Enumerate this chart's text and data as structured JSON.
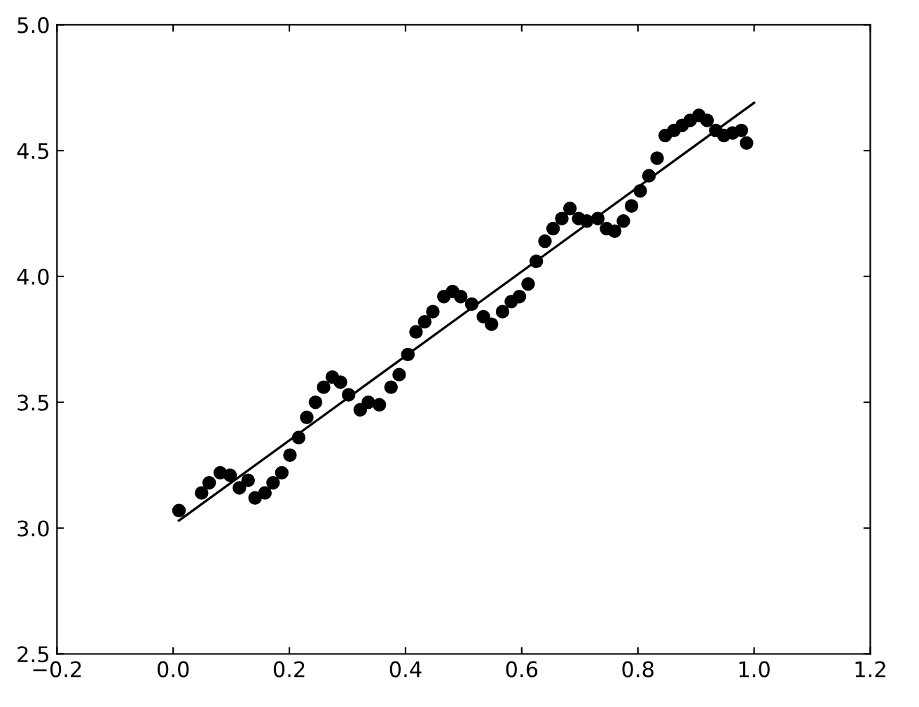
{
  "chart_data": {
    "type": "scatter",
    "xlim": [
      -0.2,
      1.2
    ],
    "ylim": [
      2.5,
      5.0
    ],
    "xticks": [
      {
        "value": -0.2,
        "label": "−0.2"
      },
      {
        "value": 0.0,
        "label": "0.0"
      },
      {
        "value": 0.2,
        "label": "0.2"
      },
      {
        "value": 0.4,
        "label": "0.4"
      },
      {
        "value": 0.6,
        "label": "0.6"
      },
      {
        "value": 0.8,
        "label": "0.8"
      },
      {
        "value": 1.0,
        "label": "1.0"
      },
      {
        "value": 1.2,
        "label": "1.2"
      }
    ],
    "yticks": [
      {
        "value": 2.5,
        "label": "2.5"
      },
      {
        "value": 3.0,
        "label": "3.0"
      },
      {
        "value": 3.5,
        "label": "3.5"
      },
      {
        "value": 4.0,
        "label": "4.0"
      },
      {
        "value": 4.5,
        "label": "4.5"
      },
      {
        "value": 5.0,
        "label": "5.0"
      }
    ],
    "grid": false,
    "legend": false,
    "series": [
      {
        "color": "#000000",
        "marker": "circle",
        "x": [
          0.01,
          0.049,
          0.062,
          0.081,
          0.098,
          0.114,
          0.129,
          0.141,
          0.158,
          0.172,
          0.187,
          0.201,
          0.216,
          0.23,
          0.245,
          0.259,
          0.274,
          0.288,
          0.302,
          0.322,
          0.336,
          0.355,
          0.375,
          0.389,
          0.404,
          0.418,
          0.433,
          0.447,
          0.466,
          0.481,
          0.495,
          0.514,
          0.534,
          0.548,
          0.567,
          0.582,
          0.596,
          0.611,
          0.625,
          0.64,
          0.654,
          0.669,
          0.683,
          0.698,
          0.712,
          0.731,
          0.746,
          0.76,
          0.775,
          0.789,
          0.804,
          0.819,
          0.833,
          0.847,
          0.862,
          0.876,
          0.89,
          0.905,
          0.919,
          0.934,
          0.948,
          0.963,
          0.978,
          0.987
        ],
        "values": [
          3.07,
          3.14,
          3.18,
          3.22,
          3.21,
          3.16,
          3.19,
          3.12,
          3.14,
          3.18,
          3.22,
          3.29,
          3.36,
          3.44,
          3.5,
          3.56,
          3.6,
          3.58,
          3.53,
          3.47,
          3.5,
          3.49,
          3.56,
          3.61,
          3.69,
          3.78,
          3.82,
          3.86,
          3.92,
          3.94,
          3.92,
          3.89,
          3.84,
          3.81,
          3.86,
          3.9,
          3.92,
          3.97,
          4.06,
          4.14,
          4.19,
          4.23,
          4.27,
          4.23,
          4.22,
          4.23,
          4.19,
          4.18,
          4.22,
          4.28,
          4.34,
          4.4,
          4.47,
          4.56,
          4.58,
          4.6,
          4.62,
          4.64,
          4.62,
          4.58,
          4.56,
          4.57,
          4.58,
          4.53
        ]
      },
      {
        "type": "line",
        "color": "#000000",
        "marker": "none",
        "line_style": "solid",
        "x": [
          0.01,
          1.0
        ],
        "values": [
          3.03,
          4.69
        ]
      }
    ]
  }
}
